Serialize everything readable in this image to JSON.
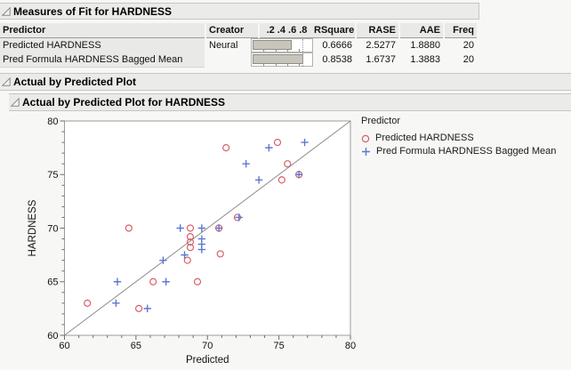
{
  "sections": {
    "measures": {
      "title": "Measures of Fit for HARDNESS",
      "table": {
        "columns": [
          "Predictor",
          "Creator",
          ".2 .4 .6 .8",
          "RSquare",
          "RASE",
          "AAE",
          "Freq"
        ],
        "bar_axis": {
          "ticks": [
            0.2,
            0.4,
            0.6,
            0.8
          ],
          "ref_line": 0.85,
          "max": 1.05
        },
        "rows": [
          {
            "predictor": "Predicted HARDNESS",
            "creator": "Neural",
            "bar_value": 0.6666,
            "rsquare": "0.6666",
            "rase": "2.5277",
            "aae": "1.8880",
            "freq": "20"
          },
          {
            "predictor": "Pred Formula HARDNESS Bagged Mean",
            "creator": "",
            "bar_value": 0.8538,
            "rsquare": "0.8538",
            "rase": "1.6737",
            "aae": "1.3883",
            "freq": "20"
          }
        ]
      }
    },
    "actual_by_predicted": {
      "title": "Actual by Predicted Plot"
    },
    "actual_by_predicted_hardness": {
      "title": "Actual by Predicted Plot for HARDNESS"
    }
  },
  "legend": {
    "title": "Predictor",
    "items": [
      {
        "label": "Predicted HARDNESS",
        "marker": "circle",
        "color": "#d9606a"
      },
      {
        "label": "Pred Formula HARDNESS Bagged Mean",
        "marker": "plus",
        "color": "#5b79d2"
      }
    ]
  },
  "chart_data": {
    "type": "scatter",
    "title": "Actual by Predicted Plot for HARDNESS",
    "xlabel": "Predicted",
    "ylabel": "HARDNESS",
    "xlim": [
      60,
      80
    ],
    "ylim": [
      60,
      80
    ],
    "xticks": [
      60,
      65,
      70,
      75,
      80
    ],
    "yticks": [
      60,
      65,
      70,
      75,
      80
    ],
    "minor_tick_step": 1,
    "identity_line": true,
    "legend_position": "right",
    "series": [
      {
        "name": "Predicted HARDNESS",
        "marker": "circle",
        "color": "#d9606a",
        "points": [
          [
            61.6,
            63
          ],
          [
            64.5,
            70
          ],
          [
            65.2,
            62.5
          ],
          [
            66.2,
            65
          ],
          [
            68.6,
            67
          ],
          [
            68.8,
            70
          ],
          [
            68.8,
            69.2
          ],
          [
            68.8,
            68.7
          ],
          [
            68.8,
            68.2
          ],
          [
            69.3,
            65
          ],
          [
            70.8,
            70
          ],
          [
            70.9,
            67.6
          ],
          [
            71.3,
            77.5
          ],
          [
            72.1,
            71
          ],
          [
            74.9,
            78
          ],
          [
            75.2,
            74.5
          ],
          [
            75.6,
            76
          ],
          [
            76.4,
            75
          ]
        ]
      },
      {
        "name": "Pred Formula HARDNESS Bagged Mean",
        "marker": "plus",
        "color": "#5b79d2",
        "points": [
          [
            63.6,
            63
          ],
          [
            63.7,
            65
          ],
          [
            65.8,
            62.5
          ],
          [
            66.9,
            67
          ],
          [
            67.1,
            65
          ],
          [
            68.1,
            70
          ],
          [
            68.4,
            67.5
          ],
          [
            69.6,
            70
          ],
          [
            69.6,
            69
          ],
          [
            69.6,
            68.5
          ],
          [
            69.6,
            68
          ],
          [
            70.8,
            70
          ],
          [
            72.2,
            71
          ],
          [
            72.7,
            76
          ],
          [
            73.6,
            74.5
          ],
          [
            74.3,
            77.5
          ],
          [
            76.4,
            75
          ],
          [
            76.8,
            78
          ]
        ]
      }
    ]
  }
}
